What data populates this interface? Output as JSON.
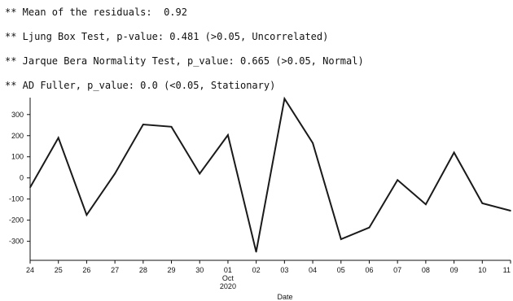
{
  "output": {
    "lines": [
      "** Mean of the residuals:  0.92",
      "** Ljung Box Test, p-value: 0.481 (>0.05, Uncorrelated)",
      "** Jarque Bera Normality Test, p_value: 0.665 (>0.05, Normal)",
      "** AD Fuller, p_value: 0.0 (<0.05, Stationary)"
    ]
  },
  "chart_data": {
    "type": "line",
    "xlabel": "Date",
    "ylabel": "",
    "title": "",
    "ylim": [
      -390,
      380
    ],
    "yticks": [
      300,
      200,
      100,
      0,
      -100,
      -200,
      -300
    ],
    "x": [
      "24",
      "25",
      "26",
      "27",
      "28",
      "29",
      "30",
      "01",
      "02",
      "03",
      "04",
      "05",
      "06",
      "07",
      "08",
      "09",
      "10",
      "11"
    ],
    "x_extra_labels": {
      "01": [
        "Oct",
        "2020"
      ]
    },
    "values": [
      -45,
      190,
      -175,
      20,
      253,
      242,
      20,
      203,
      -350,
      375,
      165,
      -290,
      -235,
      -10,
      -125,
      120,
      -120,
      -155
    ],
    "grid": false,
    "colors": {
      "line": "#1a1a1a",
      "axis": "#111111"
    }
  }
}
